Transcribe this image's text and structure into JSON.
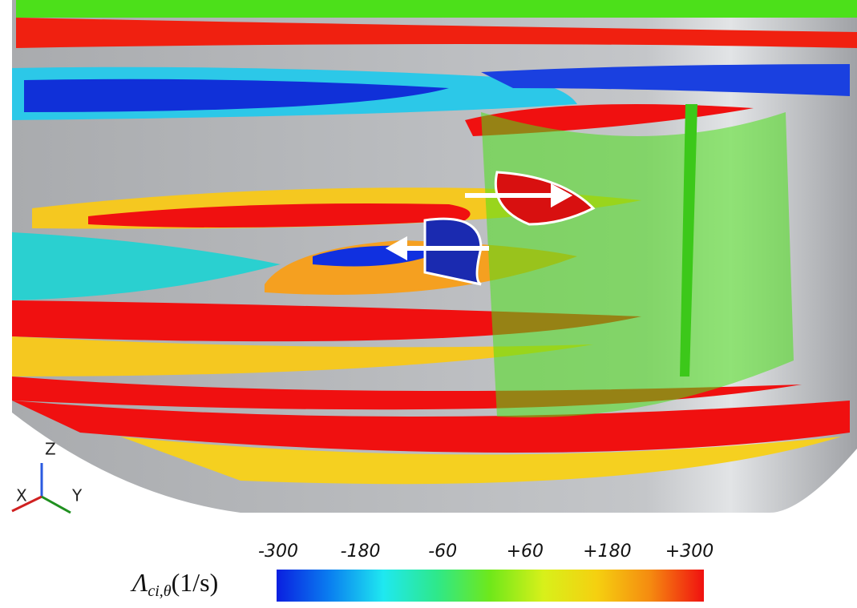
{
  "triad": {
    "z": "Z",
    "x": "X",
    "y": "Y"
  },
  "colorbar": {
    "label": "Λ",
    "subscript": "ci,θ",
    "unit": "(1/s)",
    "range": [
      -300,
      300
    ],
    "ticks": [
      -300,
      -180,
      -60,
      {
        "value": 60,
        "label": "+60"
      },
      {
        "value": 180,
        "label": "+180"
      },
      {
        "value": 300,
        "label": "+300"
      }
    ],
    "colors": [
      "#0a1fe0",
      "#0a7ff0",
      "#1fe8f0",
      "#2ee88a",
      "#6fe81a",
      "#d8f01a",
      "#f5d010",
      "#f58a10",
      "#f01010"
    ]
  }
}
